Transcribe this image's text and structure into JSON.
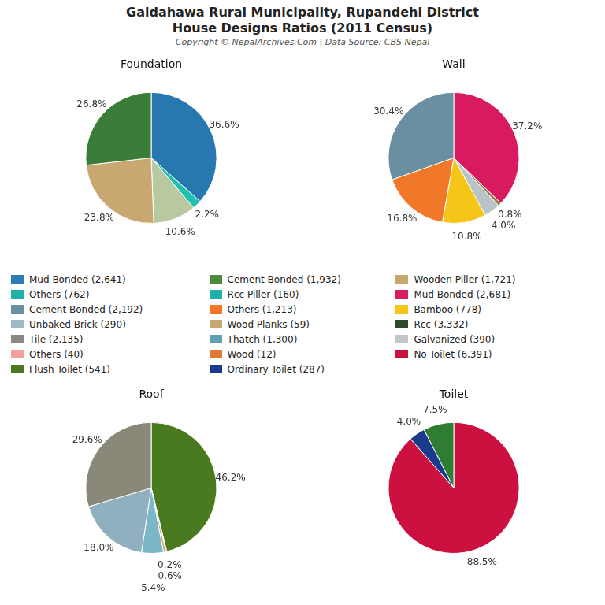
{
  "title": [
    "Gaidahawa Rural Municipality, Rupandehi District",
    "House Designs Ratios (2011 Census)"
  ],
  "subtitle": "Copyright © NepalArchives.Com | Data Source: CBS Nepal",
  "legend_entries": [
    {
      "name": "Mud Bonded (2,641)",
      "color": "#2a7db5"
    },
    {
      "name": "Others (762)",
      "color": "#20b2aa"
    },
    {
      "name": "Cement Bonded (2,192)",
      "color": "#6a8fa0"
    },
    {
      "name": "Unbaked Brick (290)",
      "color": "#a0b8c8"
    },
    {
      "name": "Tile (2,135)",
      "color": "#8a8880"
    },
    {
      "name": "Others (40)",
      "color": "#f5a0a0"
    },
    {
      "name": "Flush Toilet (541)",
      "color": "#4a7a20"
    },
    {
      "name": "Cement Bonded (1,932)",
      "color": "#4a8a3f"
    },
    {
      "name": "Rcc Piller (160)",
      "color": "#20b2aa"
    },
    {
      "name": "Others (1,213)",
      "color": "#f07828"
    },
    {
      "name": "Wood Planks (59)",
      "color": "#c8a870"
    },
    {
      "name": "Thatch (1,300)",
      "color": "#5fa0b0"
    },
    {
      "name": "Wood (12)",
      "color": "#e07838"
    },
    {
      "name": "Ordinary Toilet (287)",
      "color": "#1a3a8c"
    },
    {
      "name": "Wooden Piller (1,721)",
      "color": "#c8a870"
    },
    {
      "name": "Mud Bonded (2,681)",
      "color": "#d81b60"
    },
    {
      "name": "Bamboo (778)",
      "color": "#f5c518"
    },
    {
      "name": "Rcc (3,332)",
      "color": "#2d4a2a"
    },
    {
      "name": "Galvanized (390)",
      "color": "#c0c8cc"
    },
    {
      "name": "No Toilet (6,391)",
      "color": "#cc1040"
    }
  ],
  "chart_data": [
    {
      "type": "pie",
      "title": "Foundation",
      "values": [
        36.6,
        2.2,
        10.6,
        23.8,
        26.8
      ],
      "value_labels": [
        "36.6%",
        "2.2%",
        "10.6%",
        "23.8%",
        "26.8%"
      ],
      "data_labels": true,
      "colors": [
        "#2878b0",
        "#20c0b0",
        "#b8c8a0",
        "#c8a870",
        "#3a7d38"
      ]
    },
    {
      "type": "pie",
      "title": "Wall",
      "values": [
        37.2,
        0.8,
        4.0,
        10.8,
        16.8,
        30.4
      ],
      "value_labels": [
        "37.2%",
        "0.8%",
        "4.0%",
        "10.8%",
        "16.8%",
        "30.4%"
      ],
      "data_labels": true,
      "colors": [
        "#d81b60",
        "#9e7840",
        "#b8c4c8",
        "#f5c518",
        "#f07828",
        "#6a8fa0"
      ]
    },
    {
      "type": "pie",
      "title": "Roof",
      "values": [
        46.2,
        0.2,
        0.6,
        5.4,
        18.0,
        29.6
      ],
      "value_labels": [
        "46.2%",
        "0.2%",
        "0.6%",
        "5.4%",
        "18.0%",
        "29.6%"
      ],
      "data_labels": true,
      "colors": [
        "#4a7a20",
        "#e07838",
        "#c8a870",
        "#7ab8c8",
        "#90b0c0",
        "#8a8878"
      ]
    },
    {
      "type": "pie",
      "title": "Toilet",
      "values": [
        88.5,
        4.0,
        7.5
      ],
      "value_labels": [
        "88.5%",
        "4.0%",
        "7.5%"
      ],
      "data_labels": true,
      "colors": [
        "#cc1040",
        "#1a3a8c",
        "#2e7d32"
      ]
    }
  ]
}
